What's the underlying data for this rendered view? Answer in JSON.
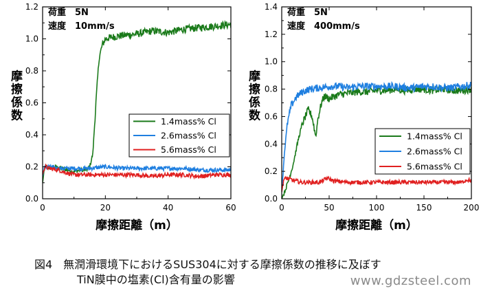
{
  "chart_data": [
    {
      "type": "line",
      "annotations": [
        "荷重　5N",
        "速度　10mm/s"
      ],
      "xlabel": "摩擦距離（m）",
      "ylabel": "摩擦係数",
      "xlim": [
        0,
        60
      ],
      "ylim": [
        0,
        1.2
      ],
      "xticks": [
        0,
        20,
        40,
        60
      ],
      "yticks": [
        0.0,
        0.2,
        0.4,
        0.6,
        0.8,
        1.0,
        1.2
      ],
      "legend_position": "center-right",
      "series": [
        {
          "name": "1.4mass% Cl",
          "color": "#1a7a1a",
          "x": [
            0,
            0.5,
            1,
            2,
            4,
            6,
            8,
            10,
            12,
            14,
            15,
            16,
            17,
            18,
            19,
            20,
            22,
            25,
            30,
            35,
            40,
            45,
            50,
            55,
            60
          ],
          "y": [
            0.1,
            0.18,
            0.2,
            0.19,
            0.2,
            0.19,
            0.18,
            0.17,
            0.18,
            0.18,
            0.2,
            0.28,
            0.6,
            0.88,
            0.96,
            1.0,
            1.01,
            1.02,
            1.03,
            1.05,
            1.04,
            1.06,
            1.07,
            1.08,
            1.09
          ]
        },
        {
          "name": "2.6mass% Cl",
          "color": "#1f7fe0",
          "x": [
            0,
            0.5,
            1,
            2,
            5,
            10,
            15,
            20,
            25,
            30,
            35,
            40,
            45,
            50,
            55,
            60
          ],
          "y": [
            0.14,
            0.19,
            0.2,
            0.2,
            0.19,
            0.19,
            0.19,
            0.2,
            0.19,
            0.19,
            0.19,
            0.19,
            0.19,
            0.18,
            0.18,
            0.18
          ]
        },
        {
          "name": "5.6mass% Cl",
          "color": "#e02020",
          "x": [
            0,
            0.5,
            1,
            2,
            5,
            8,
            10,
            15,
            20,
            25,
            30,
            35,
            40,
            45,
            50,
            55,
            60
          ],
          "y": [
            0.15,
            0.19,
            0.2,
            0.19,
            0.18,
            0.16,
            0.15,
            0.15,
            0.15,
            0.15,
            0.15,
            0.14,
            0.15,
            0.15,
            0.14,
            0.15,
            0.15
          ]
        }
      ]
    },
    {
      "type": "line",
      "annotations": [
        "荷重　5N",
        "速度　400mm/s"
      ],
      "xlabel": "摩擦距離（m）",
      "ylabel": "摩擦係数",
      "xlim": [
        0,
        200
      ],
      "ylim": [
        0,
        1.4
      ],
      "xticks": [
        0,
        50,
        100,
        150,
        200
      ],
      "yticks": [
        0.0,
        0.2,
        0.4,
        0.6,
        0.8,
        1.0,
        1.2,
        1.4
      ],
      "legend_position": "bottom-right",
      "series": [
        {
          "name": "1.4mass% Cl",
          "color": "#1a7a1a",
          "x": [
            0,
            3,
            8,
            12,
            18,
            22,
            28,
            32,
            36,
            38,
            42,
            45,
            50,
            60,
            70,
            80,
            90,
            100,
            110,
            120,
            130,
            140,
            150,
            160,
            170,
            180,
            190,
            200
          ],
          "y": [
            0.0,
            0.05,
            0.15,
            0.25,
            0.45,
            0.55,
            0.65,
            0.6,
            0.45,
            0.58,
            0.7,
            0.75,
            0.73,
            0.76,
            0.77,
            0.78,
            0.78,
            0.79,
            0.79,
            0.8,
            0.79,
            0.8,
            0.8,
            0.79,
            0.8,
            0.79,
            0.79,
            0.8
          ]
        },
        {
          "name": "2.6mass% Cl",
          "color": "#1f7fe0",
          "x": [
            0,
            3,
            6,
            10,
            15,
            20,
            25,
            30,
            40,
            50,
            60,
            70,
            80,
            90,
            100,
            110,
            120,
            130,
            140,
            150,
            160,
            170,
            180,
            190,
            200
          ],
          "y": [
            0.05,
            0.35,
            0.55,
            0.68,
            0.74,
            0.77,
            0.79,
            0.8,
            0.81,
            0.82,
            0.82,
            0.81,
            0.82,
            0.82,
            0.82,
            0.82,
            0.82,
            0.81,
            0.81,
            0.82,
            0.82,
            0.81,
            0.81,
            0.82,
            0.83
          ]
        },
        {
          "name": "5.6mass% Cl",
          "color": "#e02020",
          "x": [
            0,
            2,
            5,
            10,
            15,
            20,
            30,
            40,
            48,
            55,
            70,
            90,
            110,
            130,
            150,
            170,
            180,
            190,
            195,
            200
          ],
          "y": [
            0.05,
            0.14,
            0.15,
            0.14,
            0.13,
            0.12,
            0.12,
            0.12,
            0.15,
            0.13,
            0.12,
            0.12,
            0.12,
            0.12,
            0.12,
            0.12,
            0.12,
            0.12,
            0.14,
            0.13
          ]
        }
      ]
    }
  ],
  "caption": {
    "line1": "図4　無潤滑環境下におけるSUS304に対する摩擦係数の推移に及ぼす",
    "line2": "TiN膜中の塩素(Cl)含有量の影響"
  },
  "watermark": "www.gdzsteel.com"
}
